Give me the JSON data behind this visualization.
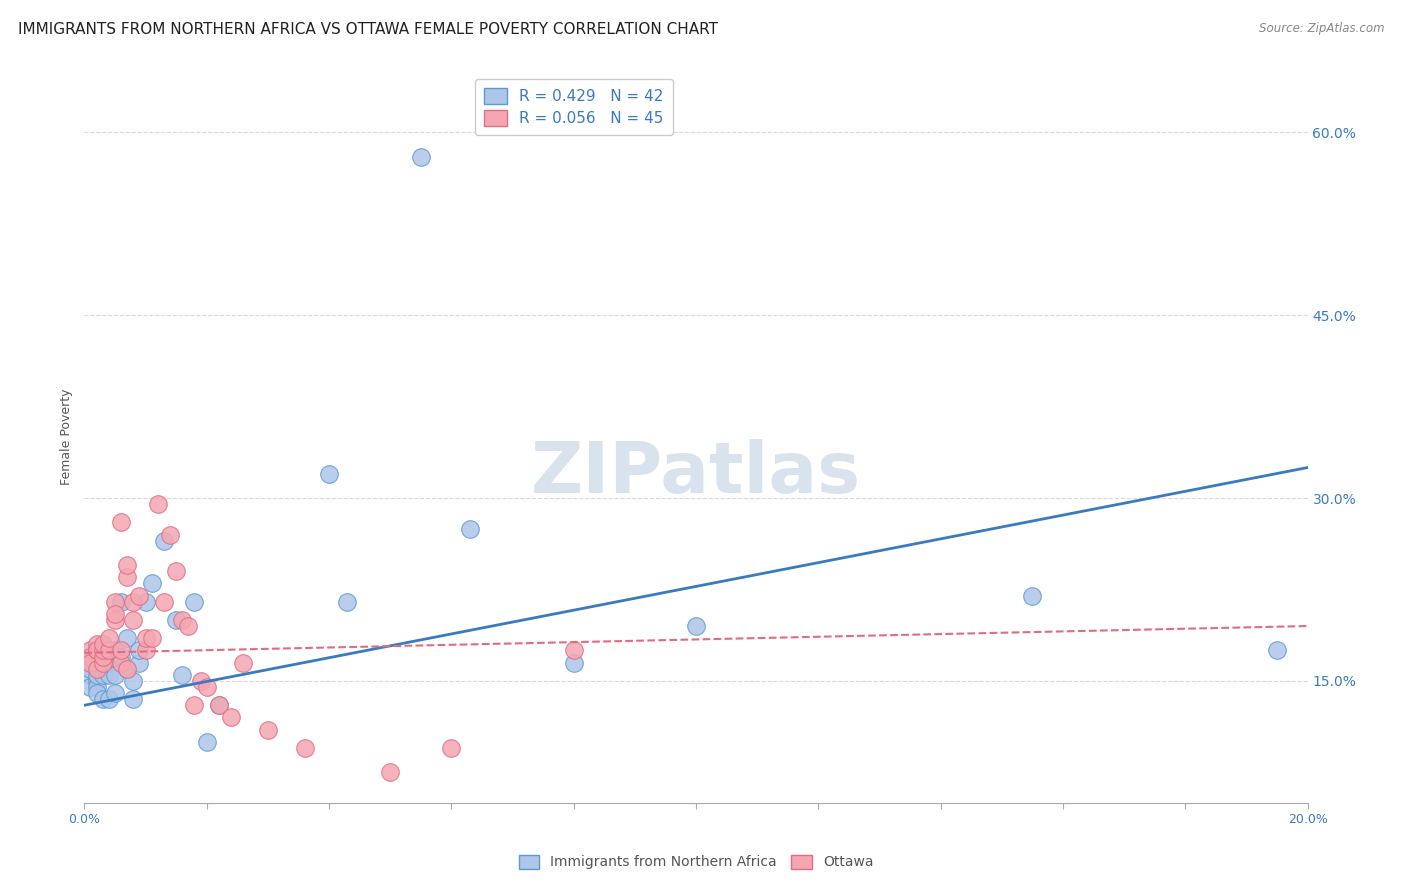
{
  "title": "IMMIGRANTS FROM NORTHERN AFRICA VS OTTAWA FEMALE POVERTY CORRELATION CHART",
  "source": "Source: ZipAtlas.com",
  "ylabel": "Female Poverty",
  "right_yticks": [
    "60.0%",
    "45.0%",
    "30.0%",
    "15.0%"
  ],
  "right_ytick_vals": [
    0.6,
    0.45,
    0.3,
    0.15
  ],
  "legend_entries": [
    {
      "label": "Immigrants from Northern Africa",
      "color": "#aec6e8",
      "R": "0.429",
      "N": "42"
    },
    {
      "label": "Ottawa",
      "color": "#f4a7b2",
      "R": "0.056",
      "N": "45"
    }
  ],
  "blue_scatter_x": [
    0.001,
    0.001,
    0.001,
    0.002,
    0.002,
    0.002,
    0.002,
    0.003,
    0.003,
    0.003,
    0.003,
    0.004,
    0.004,
    0.004,
    0.005,
    0.005,
    0.005,
    0.005,
    0.006,
    0.006,
    0.007,
    0.007,
    0.008,
    0.008,
    0.009,
    0.009,
    0.01,
    0.011,
    0.013,
    0.015,
    0.016,
    0.018,
    0.02,
    0.022,
    0.04,
    0.043,
    0.055,
    0.063,
    0.08,
    0.1,
    0.155,
    0.195
  ],
  "blue_scatter_y": [
    0.155,
    0.16,
    0.145,
    0.15,
    0.145,
    0.14,
    0.155,
    0.135,
    0.155,
    0.17,
    0.165,
    0.135,
    0.155,
    0.165,
    0.14,
    0.155,
    0.17,
    0.175,
    0.17,
    0.215,
    0.16,
    0.185,
    0.135,
    0.15,
    0.165,
    0.175,
    0.215,
    0.23,
    0.265,
    0.2,
    0.155,
    0.215,
    0.1,
    0.13,
    0.32,
    0.215,
    0.58,
    0.275,
    0.165,
    0.195,
    0.22,
    0.175
  ],
  "pink_scatter_x": [
    0.001,
    0.001,
    0.001,
    0.002,
    0.002,
    0.002,
    0.002,
    0.003,
    0.003,
    0.003,
    0.003,
    0.004,
    0.004,
    0.005,
    0.005,
    0.005,
    0.006,
    0.006,
    0.006,
    0.007,
    0.007,
    0.007,
    0.008,
    0.008,
    0.009,
    0.01,
    0.01,
    0.011,
    0.012,
    0.013,
    0.014,
    0.015,
    0.016,
    0.017,
    0.018,
    0.019,
    0.02,
    0.022,
    0.024,
    0.026,
    0.03,
    0.036,
    0.05,
    0.06,
    0.08
  ],
  "pink_scatter_y": [
    0.175,
    0.17,
    0.165,
    0.16,
    0.175,
    0.18,
    0.175,
    0.165,
    0.17,
    0.175,
    0.18,
    0.175,
    0.185,
    0.2,
    0.215,
    0.205,
    0.165,
    0.28,
    0.175,
    0.235,
    0.245,
    0.16,
    0.2,
    0.215,
    0.22,
    0.175,
    0.185,
    0.185,
    0.295,
    0.215,
    0.27,
    0.24,
    0.2,
    0.195,
    0.13,
    0.15,
    0.145,
    0.13,
    0.12,
    0.165,
    0.11,
    0.095,
    0.075,
    0.095,
    0.175
  ],
  "blue_line_x": [
    0.0,
    0.2
  ],
  "blue_line_y": [
    0.13,
    0.325
  ],
  "pink_line_x": [
    0.0,
    0.2
  ],
  "pink_line_y": [
    0.173,
    0.195
  ],
  "xlim": [
    0.0,
    0.2
  ],
  "ylim": [
    0.05,
    0.65
  ],
  "background_color": "#ffffff",
  "scatter_blue_color": "#aec6e8",
  "scatter_pink_color": "#f4a7b2",
  "scatter_blue_edge": "#5b9bd5",
  "scatter_pink_edge": "#e06c82",
  "line_blue_color": "#3a7abf",
  "line_pink_color": "#e06c82",
  "grid_color": "#d9d9d9",
  "title_fontsize": 11,
  "axis_label_fontsize": 9,
  "tick_fontsize": 9,
  "legend_fontsize": 11,
  "watermark": "ZIPatlas",
  "watermark_color": "#c8d8e8",
  "watermark_fontsize": 52
}
